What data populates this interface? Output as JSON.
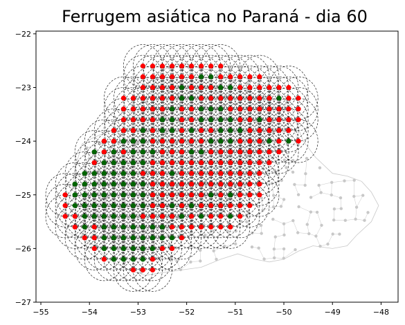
{
  "chart_data": {
    "type": "scatter",
    "title": "Ferrugem asiática no Paraná - dia 60",
    "xlim": [
      -55.1,
      -47.65
    ],
    "ylim": [
      -27,
      -21.95
    ],
    "x_ticks": [
      -55,
      -54,
      -53,
      -52,
      -51,
      -50,
      -49,
      -48
    ],
    "y_ticks": [
      -22,
      -23,
      -24,
      -25,
      -26,
      -27
    ],
    "x_tick_labels": [
      "−55",
      "−54",
      "−53",
      "−52",
      "−51",
      "−50",
      "−49",
      "−48"
    ],
    "y_tick_labels": [
      "−22",
      "−23",
      "−24",
      "−25",
      "−26",
      "−27"
    ],
    "grid": false,
    "legend": "none",
    "state_outline": [
      [
        -54.62,
        -25.45
      ],
      [
        -54.45,
        -25.2
      ],
      [
        -54.35,
        -24.85
      ],
      [
        -54.28,
        -24.45
      ],
      [
        -54.15,
        -24.05
      ],
      [
        -53.95,
        -23.95
      ],
      [
        -53.7,
        -23.85
      ],
      [
        -53.4,
        -23.75
      ],
      [
        -53.2,
        -23.55
      ],
      [
        -53.1,
        -23.25
      ],
      [
        -52.85,
        -22.95
      ],
      [
        -52.6,
        -22.75
      ],
      [
        -52.35,
        -22.6
      ],
      [
        -52.05,
        -22.55
      ],
      [
        -51.7,
        -22.65
      ],
      [
        -51.35,
        -22.7
      ],
      [
        -51.0,
        -22.75
      ],
      [
        -50.6,
        -22.9
      ],
      [
        -50.3,
        -23.0
      ],
      [
        -50.05,
        -23.15
      ],
      [
        -49.85,
        -23.35
      ],
      [
        -49.75,
        -23.65
      ],
      [
        -49.6,
        -24.0
      ],
      [
        -49.35,
        -24.3
      ],
      [
        -49.0,
        -24.6
      ],
      [
        -48.7,
        -24.65
      ],
      [
        -48.4,
        -24.75
      ],
      [
        -48.2,
        -24.95
      ],
      [
        -48.05,
        -25.2
      ],
      [
        -48.2,
        -25.5
      ],
      [
        -48.5,
        -25.75
      ],
      [
        -48.7,
        -25.95
      ],
      [
        -49.0,
        -26.0
      ],
      [
        -49.4,
        -25.95
      ],
      [
        -49.7,
        -26.05
      ],
      [
        -50.0,
        -26.2
      ],
      [
        -50.3,
        -26.25
      ],
      [
        -50.6,
        -26.2
      ],
      [
        -50.95,
        -26.1
      ],
      [
        -51.3,
        -26.2
      ],
      [
        -51.7,
        -26.35
      ],
      [
        -52.1,
        -26.4
      ],
      [
        -52.5,
        -26.45
      ],
      [
        -52.85,
        -26.5
      ],
      [
        -53.2,
        -26.4
      ],
      [
        -53.6,
        -26.2
      ],
      [
        -53.9,
        -25.95
      ],
      [
        -54.2,
        -25.8
      ],
      [
        -54.45,
        -25.7
      ],
      [
        -54.62,
        -25.45
      ]
    ],
    "grid_rows": [
      {
        "y": -22.6,
        "x0": -52.9,
        "x1": -51.3,
        "green": []
      },
      {
        "y": -22.8,
        "x0": -52.9,
        "x1": -50.5,
        "green": [
          -51.7,
          -51.5
        ]
      },
      {
        "y": -23.0,
        "x0": -52.9,
        "x1": -49.9,
        "green": [
          -52.1,
          -51.3,
          -51.1
        ]
      },
      {
        "y": -23.2,
        "x0": -53.3,
        "x1": -49.7,
        "green": [
          -52.1,
          -51.9,
          -50.1
        ]
      },
      {
        "y": -23.4,
        "x0": -53.3,
        "x1": -49.7,
        "green": [
          -52.3,
          -51.7,
          -51.5,
          -51.3
        ]
      },
      {
        "y": -23.6,
        "x0": -53.3,
        "x1": -49.7,
        "green": [
          -52.5,
          -52.3,
          -51.7,
          -51.5,
          -51.3,
          -51.1,
          -50.5
        ]
      },
      {
        "y": -23.8,
        "x0": -53.5,
        "x1": -49.9,
        "green": [
          -52.9,
          -52.5,
          -52.3,
          -51.9,
          -51.3,
          -51.1,
          -50.9
        ]
      },
      {
        "y": -24.0,
        "x0": -53.7,
        "x1": -49.7,
        "green": [
          -53.3,
          -53.1,
          -52.9,
          -51.5,
          -51.3,
          -51.1,
          -50.3,
          -49.9
        ]
      },
      {
        "y": -24.2,
        "x0": -53.9,
        "x1": -50.1,
        "green": [
          -53.9,
          -53.5,
          -53.1,
          -52.9,
          -52.7,
          -51.9,
          -51.7
        ]
      },
      {
        "y": -24.4,
        "x0": -53.9,
        "x1": -50.3,
        "green": [
          -53.7,
          -53.5,
          -53.3,
          -53.1,
          -52.9
        ]
      },
      {
        "y": -24.6,
        "x0": -54.1,
        "x1": -50.5,
        "green": [
          -54.1,
          -53.9,
          -53.7,
          -53.5,
          -53.3,
          -53.1,
          -52.3
        ]
      },
      {
        "y": -24.8,
        "x0": -54.3,
        "x1": -50.5,
        "green": [
          -54.3,
          -54.1,
          -53.9,
          -53.7,
          -53.5,
          -53.3,
          -53.1,
          -52.9
        ]
      },
      {
        "y": -25.0,
        "x0": -54.5,
        "x1": -50.5,
        "green": [
          -54.3,
          -54.1,
          -53.9,
          -53.7,
          -53.5,
          -53.3,
          -53.1,
          -52.9,
          -51.5,
          -51.1
        ]
      },
      {
        "y": -25.2,
        "x0": -54.5,
        "x1": -50.7,
        "green": [
          -54.3,
          -54.1,
          -53.9,
          -53.7,
          -53.5,
          -53.3,
          -53.1,
          -52.9,
          -52.3,
          -51.9
        ]
      },
      {
        "y": -25.4,
        "x0": -54.5,
        "x1": -50.9,
        "green": [
          -54.1,
          -53.9,
          -53.7,
          -53.5,
          -53.3,
          -53.1,
          -52.1,
          -51.7,
          -51.1
        ]
      },
      {
        "y": -25.6,
        "x0": -54.3,
        "x1": -51.1,
        "green": [
          -54.1,
          -53.7,
          -53.5,
          -53.3,
          -53.1,
          -52.9,
          -52.7,
          -52.5
        ]
      },
      {
        "y": -25.8,
        "x0": -54.1,
        "x1": -52.1,
        "green": [
          -53.7,
          -53.5,
          -53.3,
          -53.1,
          -52.9,
          -52.7,
          -52.5,
          -52.3
        ]
      },
      {
        "y": -26.0,
        "x0": -53.9,
        "x1": -52.3,
        "green": [
          -53.7,
          -53.5,
          -53.3,
          -53.1,
          -52.9,
          -52.7
        ]
      },
      {
        "y": -26.2,
        "x0": -53.7,
        "x1": -52.7,
        "green": [
          -53.5,
          -53.3,
          -53.1,
          -52.9
        ]
      },
      {
        "y": -26.4,
        "x0": -53.1,
        "x1": -52.7,
        "green": []
      }
    ],
    "colors": {
      "infected": "#ff0000",
      "infected_under_green": "#8b0000",
      "healthy": "#006400",
      "buffer_circle": "#000000",
      "municipality": "#c8c8c8",
      "background": "#ffffff"
    }
  }
}
